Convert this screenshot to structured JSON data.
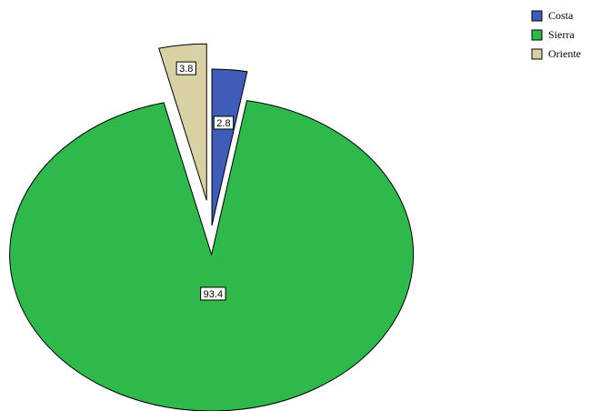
{
  "chart_data": {
    "type": "pie",
    "categories": [
      "Costa",
      "Sierra",
      "Oriente"
    ],
    "values": [
      2.8,
      93.4,
      3.8
    ],
    "colors": [
      "#3f5cb8",
      "#2fb84b",
      "#d9d1a3"
    ],
    "legend": "top-right"
  }
}
